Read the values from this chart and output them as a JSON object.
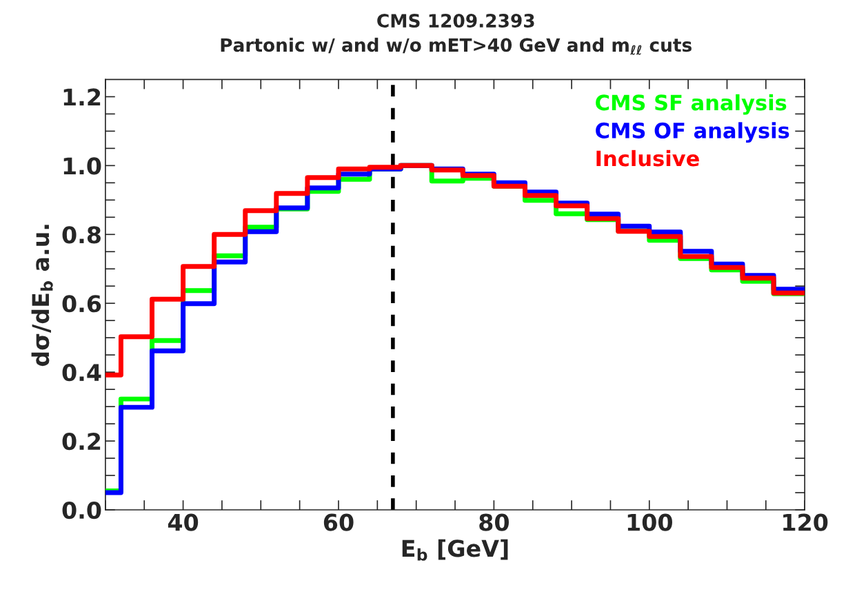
{
  "chart_data": {
    "type": "histogram",
    "title": "CMS 1209.2393",
    "subtitle": "Partonic w/ and w/o mET>40 GeV and m$_{ℓℓ}$ cuts",
    "xlabel": "E$_{b}$ [GeV]",
    "ylabel": "dσ/dE$_{b}$ a.u.",
    "bins": [
      30,
      32,
      36,
      40,
      44,
      48,
      52,
      56,
      60,
      64,
      68,
      72,
      76,
      80,
      84,
      88,
      92,
      96,
      100,
      104,
      108,
      112,
      116,
      120
    ],
    "series": [
      {
        "name": "CMS SF analysis",
        "color": "#00ff00",
        "values": [
          0.055,
          0.322,
          0.492,
          0.637,
          0.738,
          0.821,
          0.874,
          0.925,
          0.96,
          0.99,
          1.0,
          0.955,
          0.963,
          0.94,
          0.899,
          0.86,
          0.843,
          0.81,
          0.783,
          0.73,
          0.697,
          0.664,
          0.628
        ]
      },
      {
        "name": "CMS OF analysis",
        "color": "#0000ff",
        "values": [
          0.05,
          0.298,
          0.462,
          0.599,
          0.72,
          0.808,
          0.877,
          0.935,
          0.975,
          0.99,
          1.0,
          0.99,
          0.975,
          0.95,
          0.923,
          0.891,
          0.859,
          0.824,
          0.807,
          0.751,
          0.714,
          0.681,
          0.641
        ]
      },
      {
        "name": "Inclusive",
        "color": "#ff0000",
        "values": [
          0.392,
          0.503,
          0.612,
          0.707,
          0.8,
          0.869,
          0.919,
          0.965,
          0.99,
          0.995,
          1.0,
          0.987,
          0.971,
          0.94,
          0.913,
          0.883,
          0.846,
          0.809,
          0.794,
          0.736,
          0.704,
          0.673,
          0.63
        ]
      }
    ],
    "xlim": [
      30,
      120
    ],
    "ylim": [
      0,
      1.25
    ],
    "xticks": [
      {
        "value": 30,
        "label": null
      },
      {
        "value": 35,
        "label": null
      },
      40,
      {
        "value": 45,
        "label": null
      },
      {
        "value": 50,
        "label": null
      },
      {
        "value": 55,
        "label": null
      },
      60,
      {
        "value": 65,
        "label": null
      },
      {
        "value": 70,
        "label": null
      },
      {
        "value": 75,
        "label": null
      },
      80,
      {
        "value": 85,
        "label": null
      },
      {
        "value": 90,
        "label": null
      },
      {
        "value": 95,
        "label": null
      },
      100,
      {
        "value": 105,
        "label": null
      },
      {
        "value": 110,
        "label": null
      },
      {
        "value": 115,
        "label": null
      },
      120
    ],
    "yticks": [
      {
        "value": 0,
        "label": "0.0"
      },
      {
        "value": 0.05,
        "label": null
      },
      {
        "value": 0.1,
        "label": null
      },
      {
        "value": 0.15,
        "label": null
      },
      0.2,
      {
        "value": 0.25,
        "label": null
      },
      {
        "value": 0.3,
        "label": null
      },
      {
        "value": 0.35,
        "label": null
      },
      0.4,
      {
        "value": 0.45,
        "label": null
      },
      {
        "value": 0.5,
        "label": null
      },
      {
        "value": 0.55,
        "label": null
      },
      0.6,
      {
        "value": 0.65,
        "label": null
      },
      {
        "value": 0.7,
        "label": null
      },
      {
        "value": 0.75,
        "label": null
      },
      0.8,
      {
        "value": 0.85,
        "label": null
      },
      {
        "value": 0.9,
        "label": null
      },
      {
        "value": 0.95,
        "label": null
      },
      {
        "value": 1.0,
        "label": "1.0"
      },
      {
        "value": 1.05,
        "label": null
      },
      {
        "value": 1.1,
        "label": null
      },
      {
        "value": 1.15,
        "label": null
      },
      1.2
    ],
    "ref_lines": [
      {
        "axis": "x",
        "value": 67,
        "color": "#000000",
        "line_style": "dashed"
      }
    ],
    "legend": "top right",
    "grid": false
  }
}
